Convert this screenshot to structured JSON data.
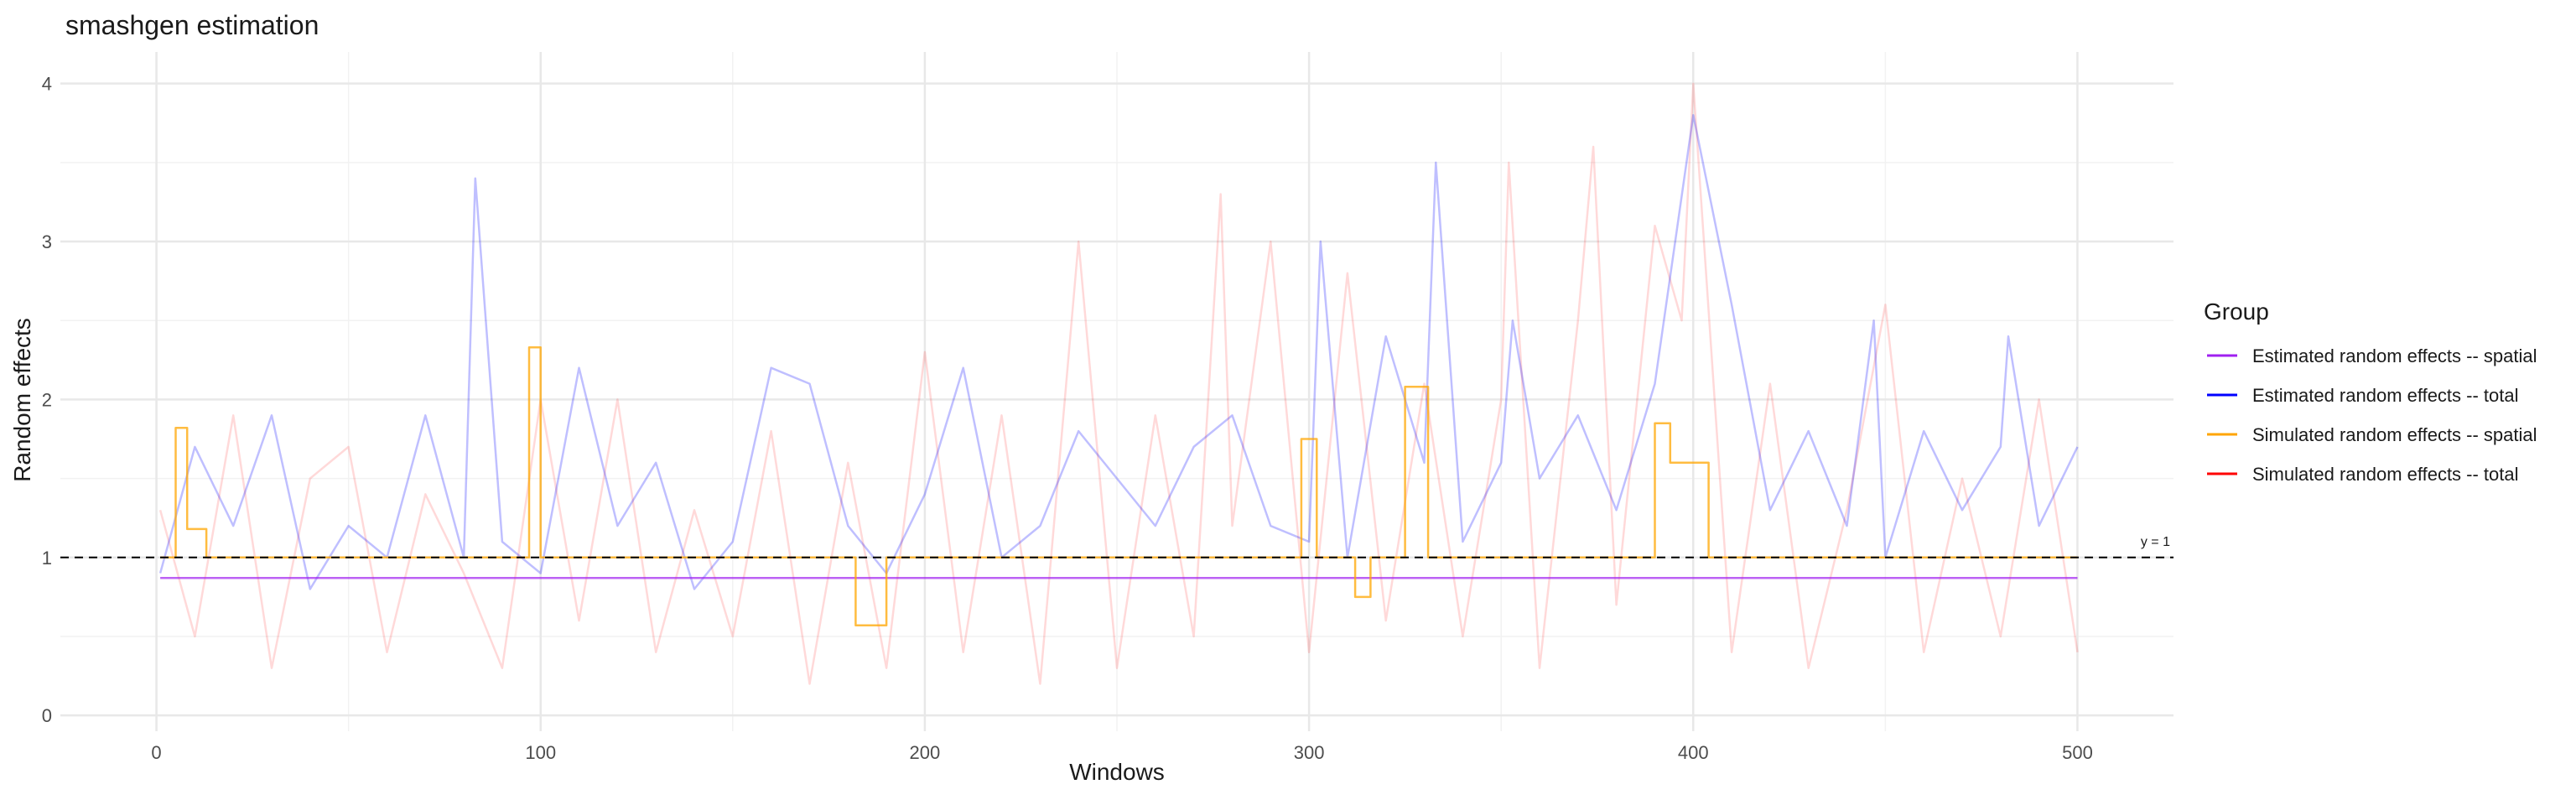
{
  "chart_data": {
    "type": "line",
    "title": "smashgen estimation",
    "xlabel": "Windows",
    "ylabel": "Random effects",
    "xlim": [
      -25,
      525
    ],
    "ylim": [
      -0.1,
      4.2
    ],
    "x_ticks": [
      0,
      100,
      200,
      300,
      400,
      500
    ],
    "y_ticks": [
      0,
      1,
      2,
      3,
      4
    ],
    "grid": true,
    "legend": {
      "title": "Group",
      "placement": "right",
      "entries": [
        {
          "label": "Estimated random effects -- spatial",
          "color": "#A020F0"
        },
        {
          "label": "Estimated random effects -- total",
          "color": "#0000FF"
        },
        {
          "label": "Simulated random effects -- spatial",
          "color": "#FFA500"
        },
        {
          "label": "Simulated random effects -- total",
          "color": "#FF0000"
        }
      ]
    },
    "reference_line": {
      "y": 1,
      "label": "y = 1",
      "style": "dashed"
    },
    "series": [
      {
        "name": "Estimated random effects -- spatial",
        "color": "#A020F0",
        "opacity": 0.7,
        "x": [
          1,
          500
        ],
        "values": [
          0.87,
          0.87
        ],
        "note": "flat line"
      },
      {
        "name": "Estimated random effects -- total",
        "color": "#0000FF",
        "opacity": 0.25,
        "x": [
          1,
          10,
          20,
          30,
          40,
          50,
          60,
          70,
          80,
          83,
          90,
          100,
          110,
          120,
          130,
          140,
          150,
          160,
          170,
          180,
          190,
          200,
          210,
          220,
          230,
          240,
          250,
          260,
          270,
          280,
          290,
          300,
          303,
          310,
          320,
          330,
          333,
          340,
          350,
          353,
          360,
          370,
          380,
          390,
          400,
          410,
          420,
          430,
          440,
          447,
          450,
          460,
          470,
          480,
          482,
          490,
          500
        ],
        "values": [
          0.9,
          1.7,
          1.2,
          1.9,
          0.8,
          1.2,
          1.0,
          1.9,
          1.0,
          3.4,
          1.1,
          0.9,
          2.2,
          1.2,
          1.6,
          0.8,
          1.1,
          2.2,
          2.1,
          1.2,
          0.9,
          1.4,
          2.2,
          1.0,
          1.2,
          1.8,
          1.5,
          1.2,
          1.7,
          1.9,
          1.2,
          1.1,
          3.0,
          1.0,
          2.4,
          1.6,
          3.5,
          1.1,
          1.6,
          2.5,
          1.5,
          1.9,
          1.3,
          2.1,
          3.8,
          2.6,
          1.3,
          1.8,
          1.2,
          2.5,
          1.0,
          1.8,
          1.3,
          1.7,
          2.4,
          1.2,
          1.7
        ]
      },
      {
        "name": "Simulated random effects -- spatial",
        "color": "#FFA500",
        "opacity": 0.75,
        "step": true,
        "x": [
          1,
          5,
          8,
          13,
          97,
          100,
          182,
          190,
          298,
          302,
          312,
          316,
          325,
          331,
          390,
          394,
          404,
          500
        ],
        "values": [
          1.0,
          1.82,
          1.18,
          1.0,
          2.33,
          1.0,
          0.57,
          1.0,
          1.75,
          1.0,
          0.75,
          1.0,
          2.08,
          1.0,
          1.85,
          1.6,
          1.0,
          1.0
        ]
      },
      {
        "name": "Simulated random effects -- total",
        "color": "#FF0000",
        "opacity": 0.15,
        "x": [
          1,
          10,
          20,
          30,
          40,
          50,
          60,
          70,
          80,
          90,
          100,
          110,
          120,
          130,
          140,
          150,
          160,
          170,
          180,
          190,
          200,
          210,
          220,
          230,
          240,
          250,
          260,
          270,
          277,
          280,
          290,
          300,
          310,
          320,
          330,
          340,
          350,
          352,
          360,
          370,
          374,
          380,
          390,
          397,
          400,
          410,
          420,
          430,
          440,
          450,
          460,
          470,
          480,
          490,
          500
        ],
        "values": [
          1.3,
          0.5,
          1.9,
          0.3,
          1.5,
          1.7,
          0.4,
          1.4,
          0.9,
          0.3,
          2.0,
          0.6,
          2.0,
          0.4,
          1.3,
          0.5,
          1.8,
          0.2,
          1.6,
          0.3,
          2.3,
          0.4,
          1.9,
          0.2,
          3.0,
          0.3,
          1.9,
          0.5,
          3.3,
          1.2,
          3.0,
          0.4,
          2.8,
          0.6,
          2.1,
          0.5,
          2.0,
          3.5,
          0.3,
          2.5,
          3.6,
          0.7,
          3.1,
          2.5,
          4.0,
          0.4,
          2.1,
          0.3,
          1.3,
          2.6,
          0.4,
          1.5,
          0.5,
          2.0,
          0.4
        ]
      }
    ]
  }
}
